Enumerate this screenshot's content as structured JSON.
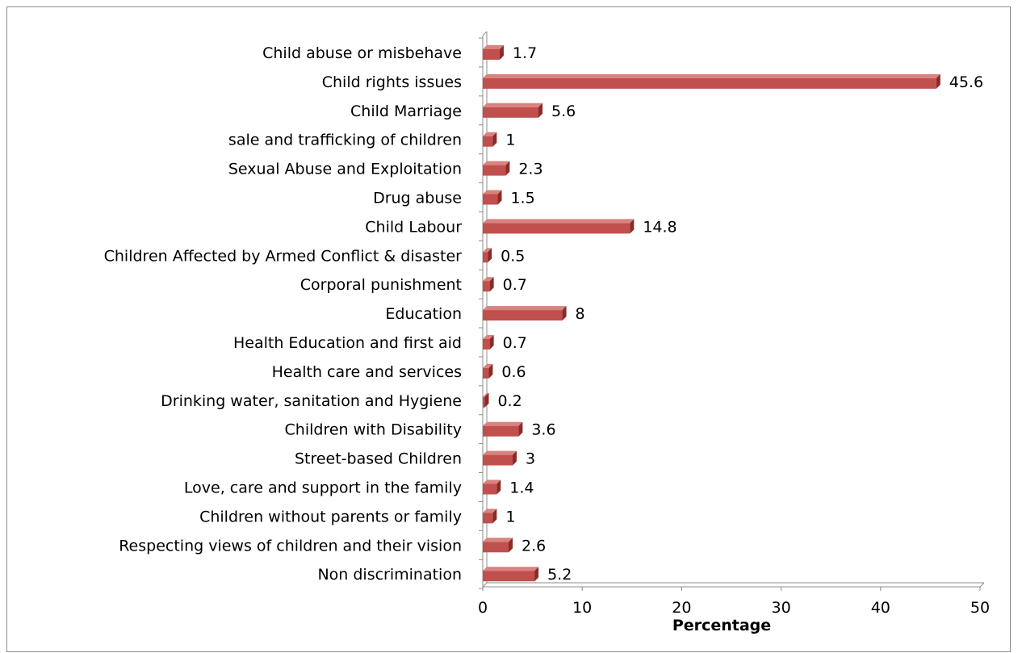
{
  "chart_data": {
    "type": "bar",
    "orientation": "horizontal",
    "style": "3d-clustered-bar",
    "categories": [
      "Child abuse or misbehave",
      "Child rights issues",
      "Child Marriage",
      "sale and trafficking of children",
      "Sexual Abuse and Exploitation",
      "Drug abuse",
      "Child Labour",
      "Children Affected by Armed Conflict & disaster",
      "Corporal punishment",
      "Education",
      "Health Education and first aid",
      "Health care and services",
      "Drinking water, sanitation and Hygiene",
      "Children with Disability",
      "Street-based Children",
      "Love, care and support in the family",
      "Children without parents or family",
      "Respecting views of children and their vision",
      "Non discrimination"
    ],
    "values": [
      1.7,
      45.6,
      5.6,
      1,
      2.3,
      1.5,
      14.8,
      0.5,
      0.7,
      8,
      0.7,
      0.6,
      0.2,
      3.6,
      3,
      1.4,
      1,
      2.6,
      5.2
    ],
    "value_labels": [
      "1.7",
      "45.6",
      "5.6",
      "1",
      "2.3",
      "1.5",
      "14.8",
      "0.5",
      "0.7",
      "8",
      "0.7",
      "0.6",
      "0.2",
      "3.6",
      "3",
      "1.4",
      "1",
      "2.6",
      "5.2"
    ],
    "title": "",
    "xlabel": "Percentage",
    "ylabel": "",
    "xlim": [
      0,
      50
    ],
    "xticks": [
      0,
      10,
      20,
      30,
      40,
      50
    ],
    "xtick_labels": [
      "0",
      "10",
      "20",
      "30",
      "40",
      "50"
    ],
    "grid": false,
    "legend": "none",
    "colors": {
      "bar_front": "#c0504d",
      "bar_top": "#d9827f",
      "bar_side": "#8b2a27",
      "axis": "#8c8c8c",
      "frame": "#8c8c8c"
    }
  }
}
